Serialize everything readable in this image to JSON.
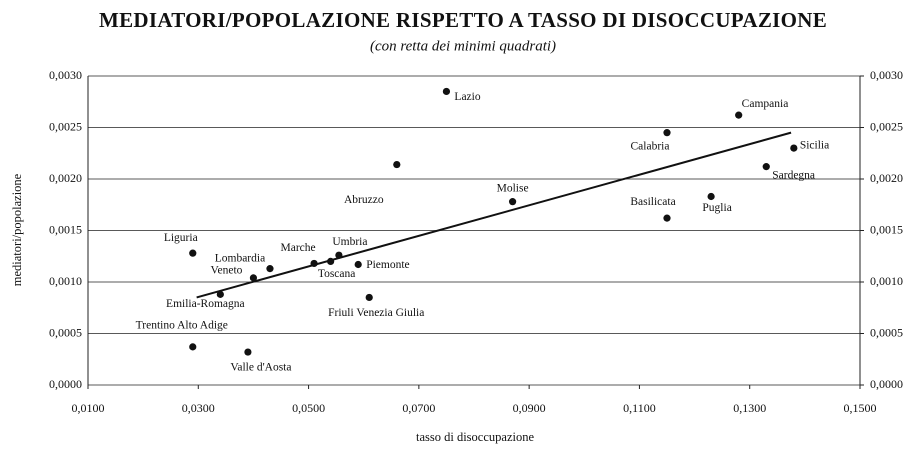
{
  "chart_data": {
    "type": "scatter",
    "title": "MEDIATORI/POPOLAZIONE RISPETTO A TASSO DI DISOCCUPAZIONE",
    "subtitle": "(con retta dei minimi quadrati)",
    "x_label": "tasso di disoccupazione",
    "y_label": "mediatori/popolazione",
    "color": "#111111",
    "grid": true,
    "labels": [
      "Lazio",
      "Campania",
      "Calabria",
      "Sicilia",
      "Sardegna",
      "Abruzzo",
      "Molise",
      "Basilicata",
      "Puglia",
      "Liguria",
      "Lombardia",
      "Veneto",
      "Marche",
      "Umbria",
      "Toscana",
      "Piemonte",
      "Emilia-Romagna",
      "Friuli Venezia Giulia",
      "Trentino Alto Adige",
      "Valle d'Aosta"
    ],
    "x": [
      0.075,
      0.128,
      0.115,
      0.138,
      0.133,
      0.066,
      0.087,
      0.115,
      0.123,
      0.029,
      0.043,
      0.04,
      0.051,
      0.0555,
      0.054,
      0.059,
      0.034,
      0.061,
      0.029,
      0.039
    ],
    "values": [
      0.00285,
      0.00262,
      0.00245,
      0.0023,
      0.00212,
      0.00214,
      0.00178,
      0.00162,
      0.00183,
      0.00128,
      0.00113,
      0.00104,
      0.00118,
      0.00126,
      0.0012,
      0.00117,
      0.00088,
      0.00085,
      0.00037,
      0.00032
    ],
    "trendline": {
      "x": [
        0.0297,
        0.1375
      ],
      "values": [
        0.00085,
        0.00245
      ]
    },
    "xlim": [
      0.01,
      0.15
    ],
    "xticks": [
      {
        "value": 0.01,
        "label": "0,0100"
      },
      {
        "value": 0.03,
        "label": "0,0300"
      },
      {
        "value": 0.05,
        "label": "0,0500"
      },
      {
        "value": 0.07,
        "label": "0,0700"
      },
      {
        "value": 0.09,
        "label": "0,0900"
      },
      {
        "value": 0.11,
        "label": "0,1100"
      },
      {
        "value": 0.13,
        "label": "0,1300"
      },
      {
        "value": 0.15,
        "label": "0,1500"
      }
    ],
    "ylim": [
      0,
      0.003
    ],
    "yticks": [
      {
        "value": 0,
        "label": "0,0000"
      },
      {
        "value": 0.0005,
        "label": "0,0005"
      },
      {
        "value": 0.001,
        "label": "0,0010"
      },
      {
        "value": 0.0015,
        "label": "0,0015"
      },
      {
        "value": 0.002,
        "label": "0,0020"
      },
      {
        "value": 0.0025,
        "label": "0,0025"
      },
      {
        "value": 0.003,
        "label": "0,0030"
      }
    ],
    "y2lim": [
      0,
      0.003
    ],
    "y2ticks": [
      {
        "value": 0,
        "label": "0,0000"
      },
      {
        "value": 0.0005,
        "label": "0,0005"
      },
      {
        "value": 0.001,
        "label": "0,0010"
      },
      {
        "value": 0.0015,
        "label": "0,0015"
      },
      {
        "value": 0.002,
        "label": "0,0020"
      },
      {
        "value": 0.0025,
        "label": "0,0025"
      },
      {
        "value": 0.003,
        "label": "0,0030"
      }
    ]
  }
}
